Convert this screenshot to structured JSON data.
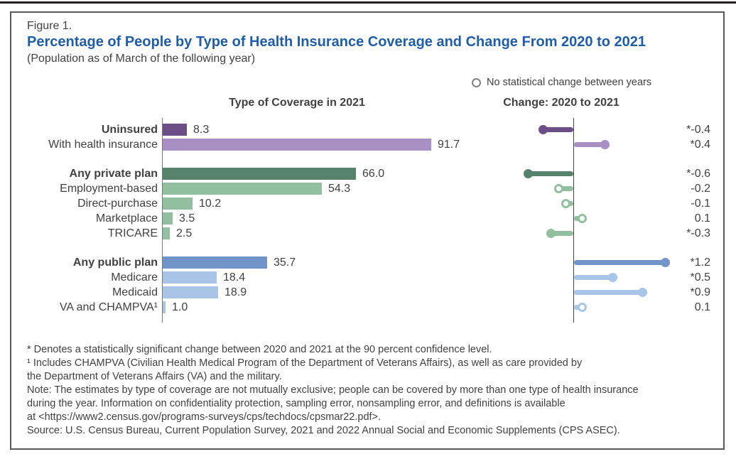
{
  "page": {
    "figure_label": "Figure 1.",
    "title": "Percentage of People by Type of Health Insurance Coverage and Change From 2020 to 2021",
    "subtitle": "(Population as of March of the following year)",
    "legend_label": "No statistical change between years",
    "left_panel_header": "Type of Coverage in 2021",
    "right_panel_header": "Change: 2020 to 2021"
  },
  "colors": {
    "title_blue": "#1f5da8",
    "text": "#414042",
    "dark_purple": "#6c4f87",
    "light_purple": "#a890c5",
    "dark_green": "#57826b",
    "light_green": "#92bf9f",
    "medium_blue": "#7195c8",
    "light_blue": "#a8c5e8",
    "axis_gray": "#77787b",
    "legend_ring_gray": "#808285"
  },
  "chart_data": {
    "type": "bar",
    "orientation": "horizontal",
    "title": "Percentage of People by Type of Health Insurance Coverage and Change From 2020 to 2021",
    "subtitle": "(Population as of March of the following year)",
    "panels": [
      "Type of Coverage in 2021",
      "Change: 2020 to 2021"
    ],
    "legend": "No statistical change between years",
    "categories": [
      "Uninsured",
      "With health insurance",
      "Any private plan",
      "Employment-based",
      "Direct-purchase",
      "Marketplace",
      "TRICARE",
      "Any public plan",
      "Medicare",
      "Medicaid",
      "VA and CHAMPVA¹"
    ],
    "series": [
      {
        "name": "Type of Coverage in 2021 (percent)",
        "values": [
          8.3,
          91.7,
          66.0,
          54.3,
          10.2,
          3.5,
          2.5,
          35.7,
          18.4,
          18.9,
          1.0
        ]
      },
      {
        "name": "Change: 2020 to 2021 (percentage points)",
        "values": [
          -0.4,
          0.4,
          -0.6,
          -0.2,
          -0.1,
          0.1,
          -0.3,
          1.2,
          0.5,
          0.9,
          0.1
        ]
      }
    ],
    "change_labels": [
      "*-0.4",
      "*0.4",
      "*-0.6",
      "-0.2",
      "-0.1",
      "0.1",
      "*-0.3",
      "*1.2",
      "*0.5",
      "*0.9",
      "0.1"
    ],
    "statistically_significant": [
      true,
      true,
      true,
      false,
      false,
      false,
      true,
      true,
      true,
      true,
      false
    ],
    "xlim_coverage": [
      0,
      100
    ],
    "xlim_change": [
      -1.0,
      1.4
    ],
    "grid": false
  },
  "rows": [
    {
      "label": "Uninsured",
      "bold": true,
      "value": 8.3,
      "value_label": "8.3",
      "change": -0.4,
      "change_label": "*-0.4",
      "significant": true,
      "color": "#6c4f87"
    },
    {
      "label": "With health insurance",
      "bold": false,
      "value": 91.7,
      "value_label": "91.7",
      "change": 0.4,
      "change_label": "*0.4",
      "significant": true,
      "color": "#a890c5"
    },
    {
      "label": "Any private plan",
      "bold": true,
      "value": 66.0,
      "value_label": "66.0",
      "change": -0.6,
      "change_label": "*-0.6",
      "significant": true,
      "color": "#57826b"
    },
    {
      "label": "Employment-based",
      "bold": false,
      "value": 54.3,
      "value_label": "54.3",
      "change": -0.2,
      "change_label": "-0.2",
      "significant": false,
      "color": "#92bf9f"
    },
    {
      "label": "Direct-purchase",
      "bold": false,
      "value": 10.2,
      "value_label": "10.2",
      "change": -0.1,
      "change_label": "-0.1",
      "significant": false,
      "color": "#92bf9f"
    },
    {
      "label": "Marketplace",
      "bold": false,
      "value": 3.5,
      "value_label": "3.5",
      "change": 0.1,
      "change_label": "0.1",
      "significant": false,
      "color": "#92bf9f"
    },
    {
      "label": "TRICARE",
      "bold": false,
      "value": 2.5,
      "value_label": "2.5",
      "change": -0.3,
      "change_label": "*-0.3",
      "significant": true,
      "color": "#92bf9f"
    },
    {
      "label": "Any public plan",
      "bold": true,
      "value": 35.7,
      "value_label": "35.7",
      "change": 1.2,
      "change_label": "*1.2",
      "significant": true,
      "color": "#7195c8"
    },
    {
      "label": "Medicare",
      "bold": false,
      "value": 18.4,
      "value_label": "18.4",
      "change": 0.5,
      "change_label": "*0.5",
      "significant": true,
      "color": "#a8c5e8"
    },
    {
      "label": "Medicaid",
      "bold": false,
      "value": 18.9,
      "value_label": "18.9",
      "change": 0.9,
      "change_label": "*0.9",
      "significant": true,
      "color": "#a8c5e8"
    },
    {
      "label": "VA and CHAMPVA¹",
      "bold": false,
      "value": 1.0,
      "value_label": "1.0",
      "change": 0.1,
      "change_label": "0.1",
      "significant": false,
      "color": "#a8c5e8"
    }
  ],
  "footnote_lines": [
    "* Denotes a statistically significant change between 2020 and 2021 at the 90 percent confidence level.",
    "¹ Includes CHAMPVA (Civilian Health Medical Program of the Department of Veterans Affairs), as well as care provided by",
    "the Department of Veterans Affairs (VA) and the military.",
    "Note: The estimates by type of coverage are not mutually exclusive; people can be covered by more than one type of health insurance",
    "during the year. Information on confidentiality protection, sampling error, nonsampling error, and definitions is available",
    "at <https://www2.census.gov/programs-surveys/cps/techdocs/cpsmar22.pdf>.",
    "Source: U.S. Census Bureau, Current Population Survey, 2021 and 2022 Annual Social and Economic Supplements (CPS ASEC)."
  ]
}
